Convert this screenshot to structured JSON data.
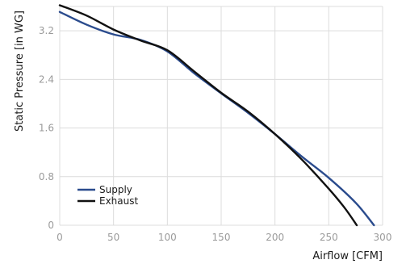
{
  "chart_data": {
    "type": "line",
    "title": "",
    "xlabel": "Airflow [CFM]",
    "ylabel": "Static Pressure [in WG]",
    "xlim": [
      0,
      300
    ],
    "ylim": [
      0,
      3.6
    ],
    "xticks": [
      0,
      50,
      100,
      150,
      200,
      250,
      300
    ],
    "yticks": [
      0,
      0.8,
      1.6,
      2.4,
      3.2
    ],
    "ytick_labels": [
      "0",
      "0.8",
      "1.6",
      "2.4",
      "3.2"
    ],
    "xtick_labels": [
      "0",
      "50",
      "100",
      "150",
      "200",
      "250",
      "300"
    ],
    "grid": true,
    "legend_position": "bottom-left",
    "series": [
      {
        "name": "Supply",
        "color": "#2a4b8d",
        "x": [
          0,
          25,
          50,
          75,
          100,
          125,
          150,
          175,
          200,
          225,
          250,
          275,
          292
        ],
        "y": [
          3.51,
          3.3,
          3.14,
          3.05,
          2.86,
          2.5,
          2.17,
          1.85,
          1.5,
          1.13,
          0.78,
          0.37,
          0.0
        ]
      },
      {
        "name": "Exhaust",
        "color": "#111111",
        "x": [
          0,
          25,
          50,
          75,
          100,
          125,
          150,
          175,
          200,
          225,
          250,
          265,
          276
        ],
        "y": [
          3.62,
          3.45,
          3.22,
          3.04,
          2.88,
          2.53,
          2.18,
          1.87,
          1.5,
          1.08,
          0.6,
          0.28,
          0.0
        ]
      }
    ]
  }
}
